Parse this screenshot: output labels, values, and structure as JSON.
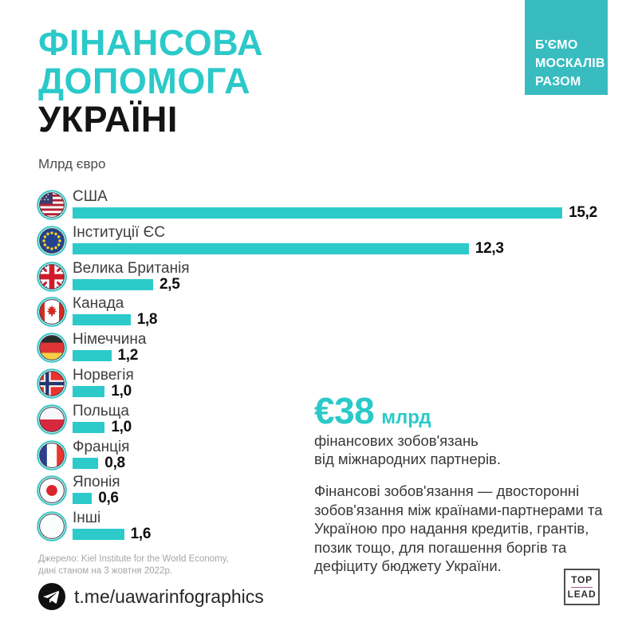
{
  "colors": {
    "accent_teal": "#2bc9c9",
    "bar_teal": "#2dcaca",
    "badge_bg": "#38bcc0",
    "title_dark": "#141414"
  },
  "badge": {
    "lines": [
      "Б'ЄМО",
      "МОСКАЛІВ",
      "РАЗОМ"
    ]
  },
  "title": {
    "line1": "ФІНАНСОВА",
    "line2": "ДОПОМОГА",
    "line3": "УКРАЇНІ"
  },
  "units_label": "Млрд євро",
  "chart_data": {
    "type": "bar",
    "orientation": "horizontal",
    "title": "Фінансова допомога Україні",
    "unit": "млрд євро",
    "categories": [
      "США",
      "Інституції ЄС",
      "Велика Британія",
      "Канада",
      "Німеччина",
      "Норвегія",
      "Польща",
      "Франція",
      "Японія",
      "Інші"
    ],
    "values": [
      15.2,
      12.3,
      2.5,
      1.8,
      1.2,
      1.0,
      1.0,
      0.8,
      0.6,
      1.6
    ],
    "value_labels": [
      "15,2",
      "12,3",
      "2,5",
      "1,8",
      "1,2",
      "1,0",
      "1,0",
      "0,8",
      "0,6",
      "1,6"
    ],
    "flags": [
      "us",
      "eu",
      "gb",
      "ca",
      "de",
      "no",
      "pl",
      "fr",
      "jp",
      "other"
    ],
    "bar_color": "#2dcaca",
    "xlim": [
      0,
      15.2
    ],
    "grid": false,
    "legend": false
  },
  "highlight": {
    "amount": "€38",
    "amount_unit": "млрд",
    "line1": "фінансових зобов'язань",
    "line2": "від міжнародних партнерів.",
    "definition": "Фінансові зобов'язання — двосторонні зобов'язання між країнами-партнерами та Україною про надання кредитів, грантів, позик тощо, для погашення боргів та дефіциту бюджету України."
  },
  "source": {
    "line1": "Джерело: Kiel Institute for the World Economy,",
    "line2": "дані станом на 3 жовтня 2022р."
  },
  "footer": {
    "telegram_handle": "t.me/uawarinfographics"
  },
  "logo": {
    "top": "TOP",
    "lead": "LEAD"
  }
}
